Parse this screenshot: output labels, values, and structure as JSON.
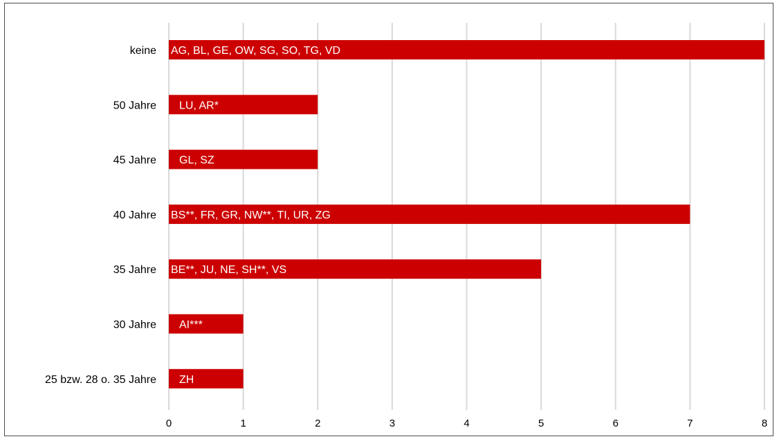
{
  "chart_data": {
    "type": "bar",
    "orientation": "horizontal",
    "categories": [
      "keine",
      "50 Jahre",
      "45 Jahre",
      "40 Jahre",
      "35 Jahre",
      "30 Jahre",
      "25 bzw. 28 o. 35 Jahre"
    ],
    "values": [
      8,
      2,
      2,
      7,
      5,
      1,
      1
    ],
    "bar_labels": [
      "AG, BL, GE, OW, SG, SO, TG, VD",
      "LU, AR*",
      "GL, SZ",
      "BS**, FR, GR, NW**, TI, UR, ZG",
      "BE**, JU, NE, SH**, VS",
      "AI***",
      "ZH"
    ],
    "xlim": [
      0,
      8
    ],
    "xticks": [
      0,
      1,
      2,
      3,
      4,
      5,
      6,
      7,
      8
    ],
    "grid": "vertical",
    "bar_color": "#cc0000",
    "grid_color": "#d9d9d9",
    "legend": "none"
  }
}
